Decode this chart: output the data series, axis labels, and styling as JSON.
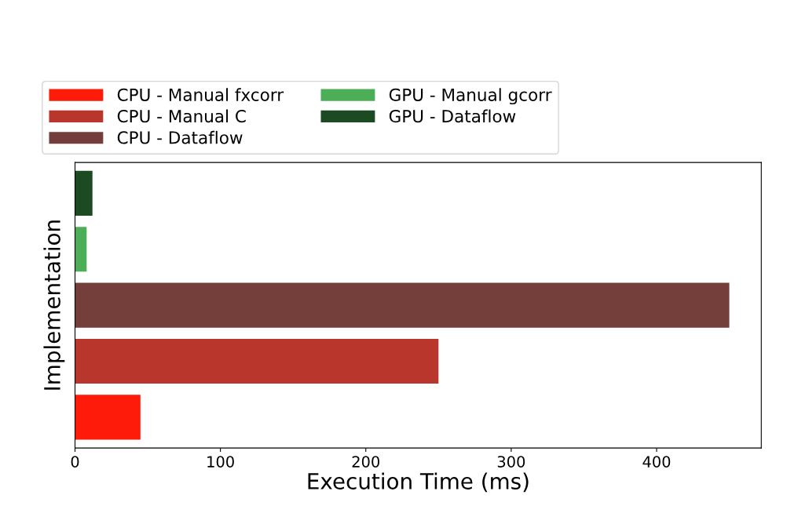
{
  "chart_data": {
    "type": "bar",
    "orientation": "horizontal",
    "xlabel": "Execution Time (ms)",
    "ylabel": "Implementation",
    "categories": [
      null,
      null,
      null,
      null,
      null
    ],
    "series": [
      {
        "name": "CPU - Manual fxcorr",
        "color": "#fe1b09",
        "values": [
          null,
          null,
          null,
          null,
          45
        ]
      },
      {
        "name": "CPU - Manual C",
        "color": "#b8362c",
        "values": [
          null,
          null,
          null,
          250,
          null
        ]
      },
      {
        "name": "CPU - Dataflow",
        "color": "#743e3a",
        "values": [
          null,
          null,
          450,
          null,
          null
        ]
      },
      {
        "name": "GPU - Manual gcorr",
        "color": "#4caf58",
        "values": [
          null,
          8,
          null,
          null,
          null
        ]
      },
      {
        "name": "GPU - Dataflow",
        "color": "#1c4a22",
        "values": [
          12,
          null,
          null,
          null,
          null
        ]
      }
    ],
    "xlim": [
      0,
      472
    ],
    "xticks": [
      0,
      100,
      200,
      300,
      400
    ],
    "legend": "top",
    "grid": false
  }
}
